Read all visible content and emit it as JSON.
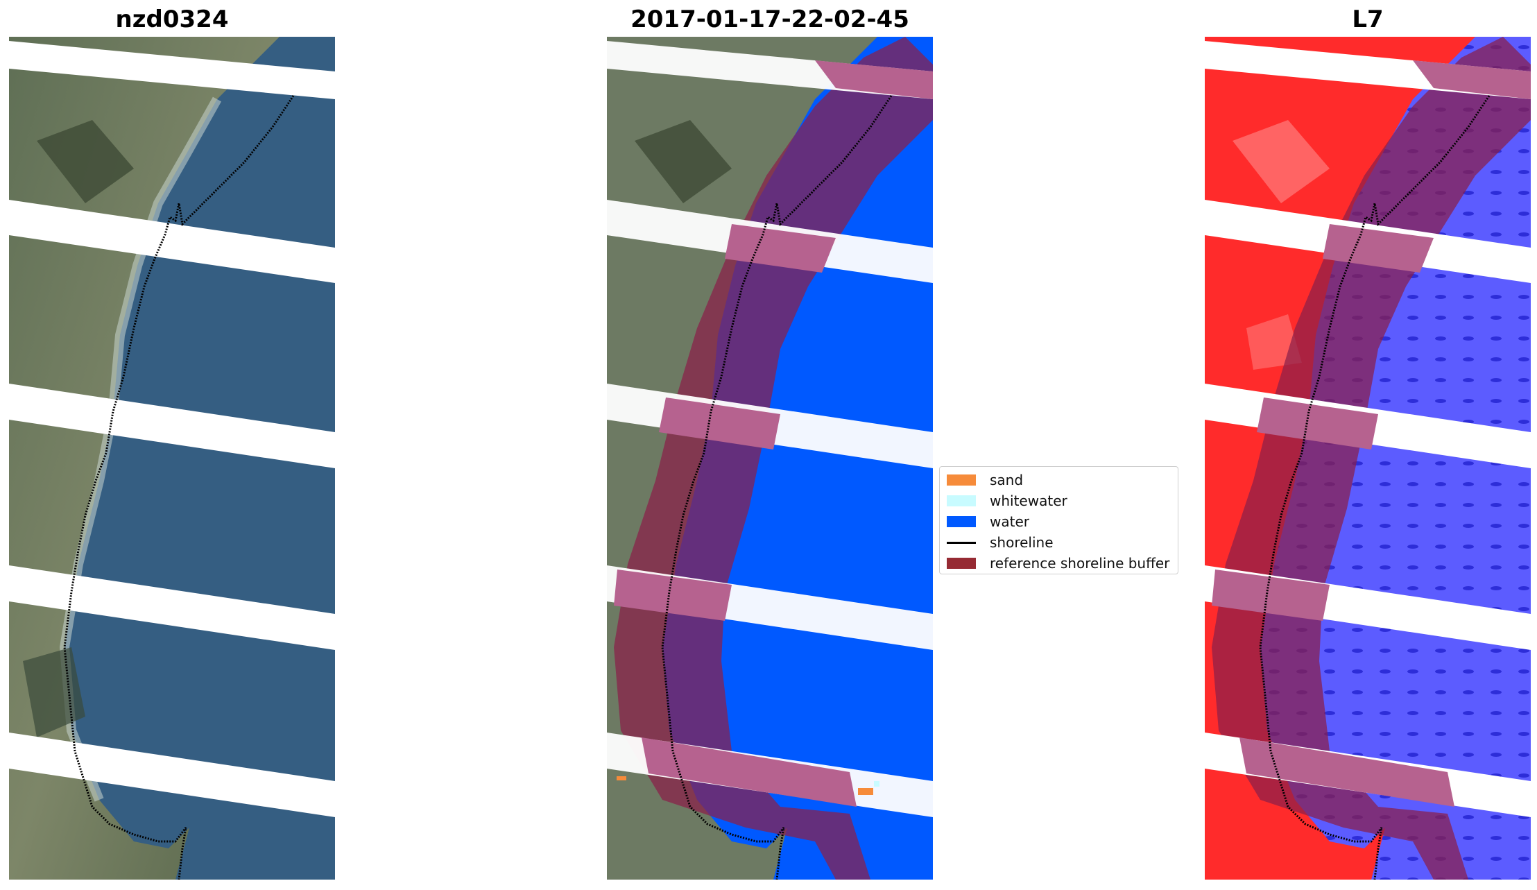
{
  "panels": [
    {
      "title": "nzd0324"
    },
    {
      "title": "2017-01-17-22-02-45"
    },
    {
      "title": "L7"
    }
  ],
  "legend": {
    "items": [
      {
        "label": "sand",
        "color": "#f68b3a",
        "kind": "patch"
      },
      {
        "label": "whitewater",
        "color": "#c8fbff",
        "kind": "patch"
      },
      {
        "label": "water",
        "color": "#0059ff",
        "kind": "patch"
      },
      {
        "label": "shoreline",
        "color": "#000000",
        "kind": "line"
      },
      {
        "label": "reference shoreline buffer",
        "color": "#962a33",
        "kind": "patch"
      }
    ]
  },
  "colors": {
    "rgb_land": "#6d7a63",
    "rgb_sea": "#355e82",
    "class_water": "#0059ff",
    "buffer": "#8a1f4a",
    "ndwi_land": "#ff2b2b",
    "ndwi_water": "#4b4bff"
  }
}
